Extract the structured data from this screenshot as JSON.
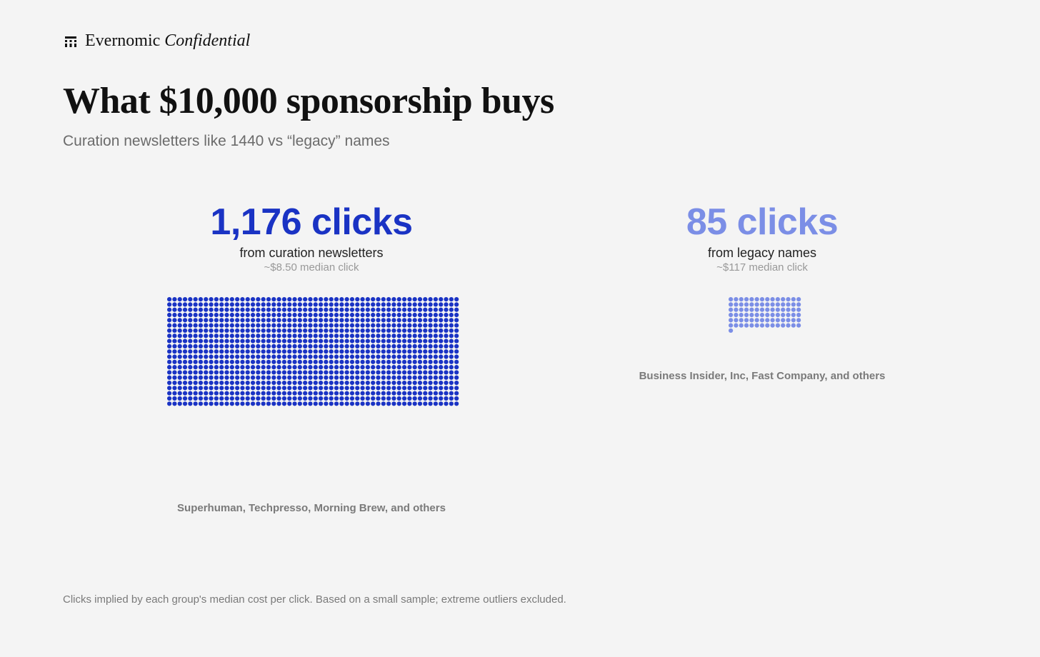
{
  "brand": {
    "name": "Evernomic",
    "sub": "Confidential",
    "icon": "grid-logo-icon"
  },
  "header": {
    "title": "What $10,000 sponsorship buys",
    "subtitle": "Curation newsletters like 1440 vs “legacy” names"
  },
  "groups": [
    {
      "headline": "1,176 clicks",
      "from": "from curation newsletters",
      "median": "~$8.50 median click",
      "caption": "Superhuman, Techpresso, Morning Brew, and others"
    },
    {
      "headline": "85 clicks",
      "from": "from legacy names",
      "median": "~$117 median click",
      "caption": "Business Insider, Inc, Fast Company, and others"
    }
  ],
  "footnote": "Clicks implied by each group's median cost per click. Based on a small sample; extreme outliers excluded.",
  "chart_data": {
    "type": "dot-matrix",
    "categories": [
      "curation newsletters",
      "legacy names"
    ],
    "values": [
      1176,
      85
    ],
    "unit": "clicks",
    "colors": {
      "curation newsletters": "#1a33c4",
      "legacy names": "#7b8ee6"
    }
  }
}
